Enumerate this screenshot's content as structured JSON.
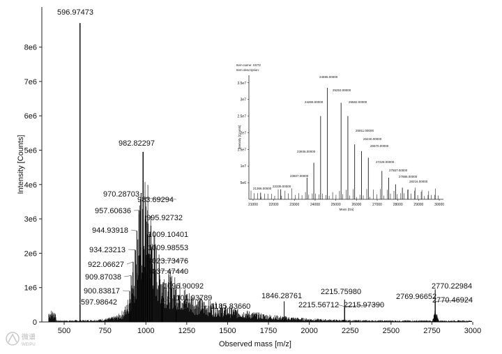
{
  "chart_data": [
    {
      "type": "line",
      "subtype": "mass-spectrum",
      "title": "",
      "xlabel": "Observed mass [m/z]",
      "ylabel": "Intensity [Counts]",
      "xlim": [
        400,
        3000
      ],
      "ylim": [
        0,
        8800000
      ],
      "xticks": [
        500,
        750,
        1000,
        1250,
        1500,
        1750,
        2000,
        2250,
        2500,
        2750,
        3000
      ],
      "xtick_labels": [
        "500",
        "750",
        "1000",
        "1250",
        "1500",
        "1750",
        "2000",
        "2250",
        "2500",
        "2750",
        "3000"
      ],
      "yticks": [
        0,
        1000000,
        2000000,
        3000000,
        4000000,
        5000000,
        6000000,
        7000000,
        8000000
      ],
      "ytick_labels": [
        "0",
        "1e6",
        "2e6",
        "3e6",
        "4e6",
        "5e6",
        "6e6",
        "7e6",
        "8e6"
      ],
      "peaks": [
        {
          "label": "596.97473",
          "x": 596.97,
          "y": 8700000
        },
        {
          "label": "597.98642",
          "x": 597.99,
          "y": 500000
        },
        {
          "label": "982.82297",
          "x": 982.82,
          "y": 4950000
        },
        {
          "label": "970.28703",
          "x": 970.29,
          "y": 3750000
        },
        {
          "label": "983.69294",
          "x": 983.69,
          "y": 3600000
        },
        {
          "label": "957.60636",
          "x": 957.61,
          "y": 3250000
        },
        {
          "label": "995.92732",
          "x": 995.93,
          "y": 3000000
        },
        {
          "label": "944.93918",
          "x": 944.94,
          "y": 2650000
        },
        {
          "label": "1009.10401",
          "x": 1009.1,
          "y": 2550000
        },
        {
          "label": "934.23213",
          "x": 934.23,
          "y": 2100000
        },
        {
          "label": "1009.98553",
          "x": 1009.99,
          "y": 2150000
        },
        {
          "label": "922.06627",
          "x": 922.07,
          "y": 1750000
        },
        {
          "label": "1023.73476",
          "x": 1023.73,
          "y": 1800000
        },
        {
          "label": "909.87038",
          "x": 909.87,
          "y": 1350000
        },
        {
          "label": "1037.47440",
          "x": 1037.47,
          "y": 1500000
        },
        {
          "label": "900.83817",
          "x": 900.84,
          "y": 900000
        },
        {
          "label": "1096.90092",
          "x": 1096.9,
          "y": 750000
        },
        {
          "label": "1101.93789",
          "x": 1101.94,
          "y": 550000
        },
        {
          "label": "1185.83660",
          "x": 1185.84,
          "y": 380000
        },
        {
          "label": "1846.28761",
          "x": 1846.29,
          "y": 600000
        },
        {
          "label": "2215.75980",
          "x": 2215.76,
          "y": 650000
        },
        {
          "label": "2215.56712",
          "x": 2215.57,
          "y": 450000
        },
        {
          "label": "2215.97390",
          "x": 2215.97,
          "y": 450000
        },
        {
          "label": "2770.22984",
          "x": 2770.23,
          "y": 950000
        },
        {
          "label": "2769.96652",
          "x": 2769.97,
          "y": 650000
        },
        {
          "label": "2770.46924",
          "x": 2770.47,
          "y": 600000
        }
      ]
    },
    {
      "type": "line",
      "subtype": "deconvoluted-mass-spectrum-inset",
      "header_lines": [
        "Item name: SST2",
        "Item description:"
      ],
      "xlabel": "Mass (Da)",
      "ylabel": "Intensity [Counts]",
      "xlim": [
        20800,
        30200
      ],
      "ylim": [
        0,
        36000000
      ],
      "xticks": [
        21000,
        22000,
        23000,
        24000,
        25000,
        26000,
        27000,
        28000,
        29000,
        30000
      ],
      "xtick_labels": [
        "21000",
        "22000",
        "23000",
        "24000",
        "25000",
        "26000",
        "27000",
        "28000",
        "29000",
        "30000"
      ],
      "yticks": [
        5000000,
        10000000,
        15000000,
        20000000,
        25000000,
        30000000,
        35000000
      ],
      "ytick_labels": [
        "5e6",
        "1e7",
        "1.5e7",
        "2e7",
        "2.5e7",
        "3e7",
        "3.5e7"
      ],
      "peaks": [
        {
          "label": "21366.00000",
          "x": 21366,
          "y": 2000000
        },
        {
          "label": "22339.00000",
          "x": 22339,
          "y": 3000000
        },
        {
          "label": "23607.00000",
          "x": 23607,
          "y": 6500000
        },
        {
          "label": "23936.00000",
          "x": 23936,
          "y": 11000000
        },
        {
          "label": "24265.00000",
          "x": 24265,
          "y": 25000000
        },
        {
          "label": "24595.00000",
          "x": 24595,
          "y": 33500000
        },
        {
          "label": "25253.00000",
          "x": 25253,
          "y": 29000000
        },
        {
          "label": "25582.00000",
          "x": 25582,
          "y": 25000000
        },
        {
          "label": "25911.00000",
          "x": 25911,
          "y": 16500000
        },
        {
          "label": "26240.00000",
          "x": 26240,
          "y": 14500000
        },
        {
          "label": "26570.00000",
          "x": 26570,
          "y": 12500000
        },
        {
          "label": "27228.00000",
          "x": 27228,
          "y": 8500000
        },
        {
          "label": "27557.00000",
          "x": 27557,
          "y": 6500000
        },
        {
          "label": "27886.00000",
          "x": 27886,
          "y": 4500000
        },
        {
          "label": "28216.00000",
          "x": 28216,
          "y": 3500000
        }
      ]
    }
  ],
  "watermark": {
    "text": "微谱",
    "subtext": "WEIPU"
  }
}
